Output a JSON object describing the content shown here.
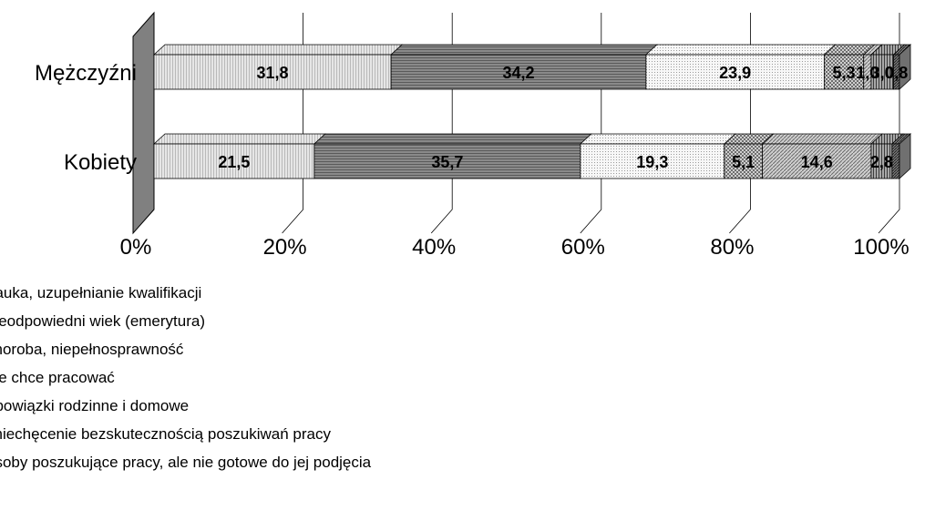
{
  "chart_data": {
    "type": "bar",
    "orientation": "horizontal",
    "stacked": true,
    "percent_stacked": true,
    "three_d": true,
    "categories": [
      "Mężczyźni",
      "Kobiety"
    ],
    "series": [
      {
        "name": "nauka, uzupełnianie kwalifikacji",
        "values": [
          31.8,
          21.5
        ],
        "value_labels": [
          "31,8",
          "21,5"
        ],
        "color": "#d9d9d9"
      },
      {
        "name": "nieodpowiedni wiek (emerytura)",
        "values": [
          34.2,
          35.7
        ],
        "value_labels": [
          "34,2",
          "35,7"
        ],
        "color": "#7a7a7a"
      },
      {
        "name": "choroba, niepełnosprawność",
        "values": [
          23.9,
          19.3
        ],
        "value_labels": [
          "23,9",
          "19,3"
        ],
        "color": "#f4f4f4"
      },
      {
        "name": "nie chce pracować",
        "values": [
          5.3,
          5.1
        ],
        "value_labels": [
          "5,3",
          "5,1"
        ],
        "color": "#a8a8a8"
      },
      {
        "name": "obowiązki rodzinne i domowe",
        "values": [
          1.0,
          14.6
        ],
        "value_labels": [
          "1,0",
          "14,6"
        ],
        "color": "#bcbcbc"
      },
      {
        "name": "zniechęcenie bezskutecznością poszukiwań pracy",
        "values": [
          3.0,
          2.8
        ],
        "value_labels": [
          "3,0",
          "2,8"
        ],
        "color": "#8d8d8d"
      },
      {
        "name": "osoby poszukujące pracy, ale nie gotowe do jej podjęcia",
        "values": [
          0.8,
          1.0
        ],
        "value_labels": [
          "0,8",
          ""
        ],
        "color": "#5e5e5e"
      }
    ],
    "x_ticks": [
      "0%",
      "20%",
      "40%",
      "60%",
      "80%",
      "100%"
    ],
    "xlim": [
      0,
      100
    ],
    "grid": true,
    "legend_position": "bottom-left"
  }
}
